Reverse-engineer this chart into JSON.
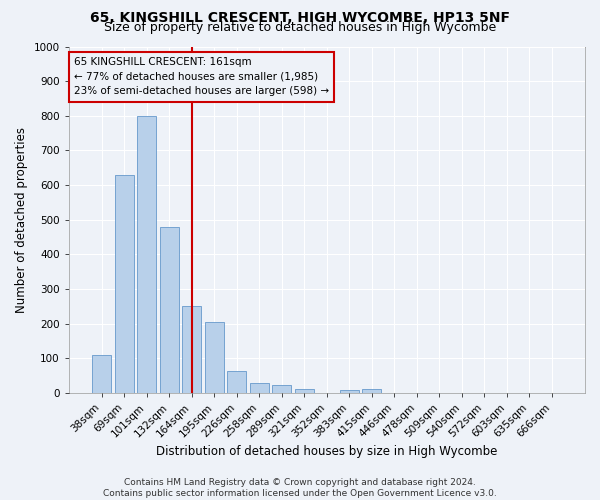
{
  "title": "65, KINGSHILL CRESCENT, HIGH WYCOMBE, HP13 5NF",
  "subtitle": "Size of property relative to detached houses in High Wycombe",
  "xlabel": "Distribution of detached houses by size in High Wycombe",
  "ylabel": "Number of detached properties",
  "footnote": "Contains HM Land Registry data © Crown copyright and database right 2024.\nContains public sector information licensed under the Open Government Licence v3.0.",
  "bar_labels": [
    "38sqm",
    "69sqm",
    "101sqm",
    "132sqm",
    "164sqm",
    "195sqm",
    "226sqm",
    "258sqm",
    "289sqm",
    "321sqm",
    "352sqm",
    "383sqm",
    "415sqm",
    "446sqm",
    "478sqm",
    "509sqm",
    "540sqm",
    "572sqm",
    "603sqm",
    "635sqm",
    "666sqm"
  ],
  "bar_values": [
    110,
    630,
    800,
    480,
    250,
    205,
    63,
    30,
    22,
    12,
    0,
    10,
    12,
    0,
    0,
    0,
    0,
    0,
    0,
    0,
    0
  ],
  "bar_color": "#b8d0ea",
  "bar_edge_color": "#6699cc",
  "vline_x_index": 4,
  "vline_color": "#cc0000",
  "annotation_text": "65 KINGSHILL CRESCENT: 161sqm\n← 77% of detached houses are smaller (1,985)\n23% of semi-detached houses are larger (598) →",
  "annotation_box_color": "#cc0000",
  "ylim": [
    0,
    1000
  ],
  "yticks": [
    0,
    100,
    200,
    300,
    400,
    500,
    600,
    700,
    800,
    900,
    1000
  ],
  "background_color": "#eef2f8",
  "grid_color": "#ffffff",
  "title_fontsize": 10,
  "subtitle_fontsize": 9,
  "ylabel_fontsize": 8.5,
  "xlabel_fontsize": 8.5,
  "tick_fontsize": 7.5,
  "annotation_fontsize": 7.5,
  "footnote_fontsize": 6.5
}
